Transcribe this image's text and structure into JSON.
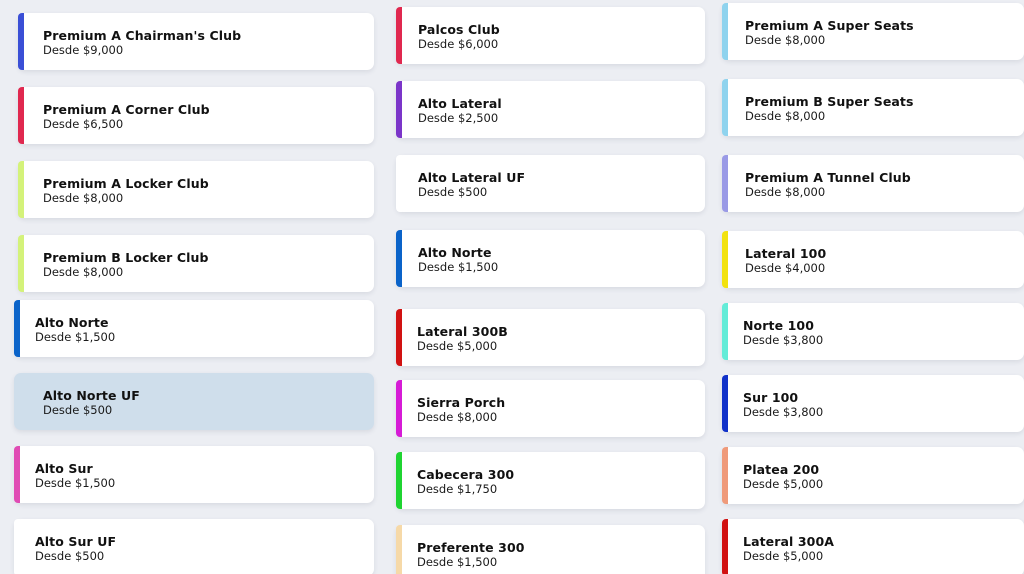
{
  "columns": [
    {
      "items": [
        {
          "name": "Premium A Chairman's Club",
          "price": "Desde $9,000",
          "color": "#3a4fd6",
          "selected": false
        },
        {
          "name": "Premium A Corner Club",
          "price": "Desde $6,500",
          "color": "#e0284f",
          "selected": false
        },
        {
          "name": "Premium A Locker Club",
          "price": "Desde $8,000",
          "color": "#d4f27a",
          "selected": false
        },
        {
          "name": "Premium B Locker Club",
          "price": "Desde $8,000",
          "color": "#d4f27a",
          "selected": false
        },
        {
          "name": "Alto Norte",
          "price": "Desde $1,500",
          "color": "#0a63c9",
          "selected": false
        },
        {
          "name": "Alto Norte UF",
          "price": "Desde $500",
          "color": "#cfdeeb",
          "selected": true
        },
        {
          "name": "Alto Sur",
          "price": "Desde $1,500",
          "color": "#e04bb4",
          "selected": false
        },
        {
          "name": "Alto Sur UF",
          "price": "Desde $500",
          "color": "#ffffff",
          "selected": false
        }
      ]
    },
    {
      "items": [
        {
          "name": "Palcos Club",
          "price": "Desde $6,000",
          "color": "#e0284f",
          "selected": false
        },
        {
          "name": "Alto Lateral",
          "price": "Desde $2,500",
          "color": "#7b35c9",
          "selected": false
        },
        {
          "name": "Alto Lateral UF",
          "price": "Desde $500",
          "color": "#ffffff",
          "selected": false
        },
        {
          "name": "Alto Norte",
          "price": "Desde $1,500",
          "color": "#0a63c9",
          "selected": false
        },
        {
          "name": "Lateral 300B",
          "price": "Desde $5,000",
          "color": "#d11212",
          "selected": false
        },
        {
          "name": "Sierra Porch",
          "price": "Desde $8,000",
          "color": "#d61bd6",
          "selected": false
        },
        {
          "name": "Cabecera 300",
          "price": "Desde $1,750",
          "color": "#1fd431",
          "selected": false
        },
        {
          "name": "Preferente 300",
          "price": "Desde $1,500",
          "color": "#f6d9a8",
          "selected": false
        }
      ]
    },
    {
      "items": [
        {
          "name": "Premium A Super Seats",
          "price": "Desde $8,000",
          "color": "#8fd3ee",
          "selected": false
        },
        {
          "name": "Premium B Super Seats",
          "price": "Desde $8,000",
          "color": "#8fd3ee",
          "selected": false
        },
        {
          "name": "Premium A Tunnel Club",
          "price": "Desde $8,000",
          "color": "#9a9ae6",
          "selected": false
        },
        {
          "name": "Lateral 100",
          "price": "Desde $4,000",
          "color": "#f2e20f",
          "selected": false
        },
        {
          "name": "Norte 100",
          "price": "Desde $3,800",
          "color": "#63ecd8",
          "selected": false
        },
        {
          "name": "Sur 100",
          "price": "Desde $3,800",
          "color": "#1132c9",
          "selected": false
        },
        {
          "name": "Platea 200",
          "price": "Desde $5,000",
          "color": "#ef9a7a",
          "selected": false
        },
        {
          "name": "Lateral 300A",
          "price": "Desde $5,000",
          "color": "#d11212",
          "selected": false
        }
      ]
    }
  ]
}
